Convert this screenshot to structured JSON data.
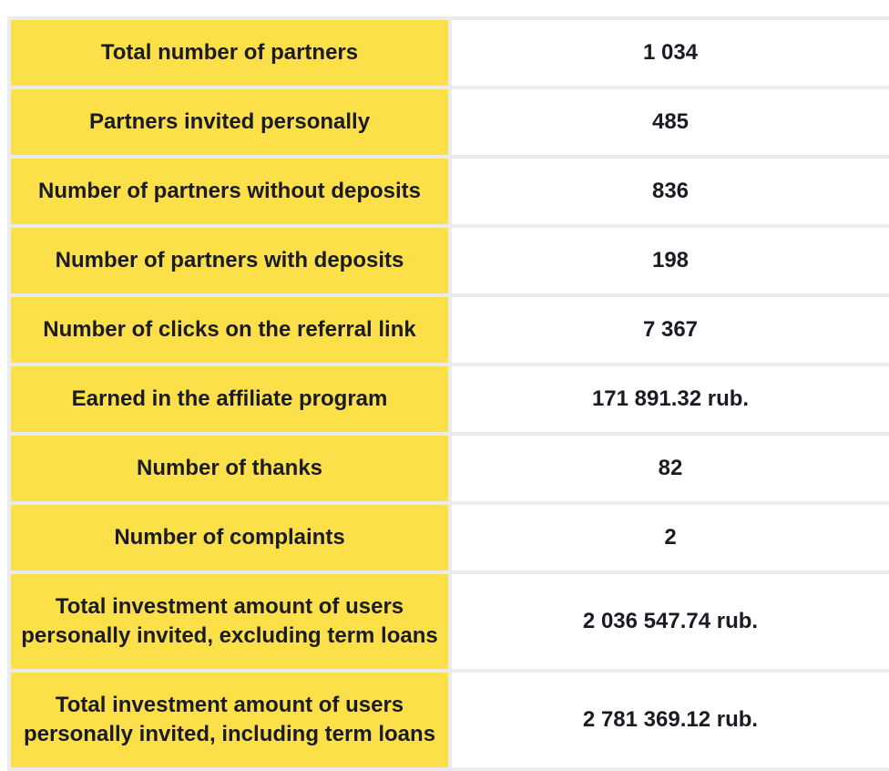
{
  "rows": [
    {
      "label": "Total number of partners",
      "value": "1 034"
    },
    {
      "label": "Partners invited personally",
      "value": "485"
    },
    {
      "label": "Number of partners without deposits",
      "value": "836"
    },
    {
      "label": "Number of partners with deposits",
      "value": "198"
    },
    {
      "label": "Number of clicks on the referral link",
      "value": "7 367"
    },
    {
      "label": "Earned in the affiliate program",
      "value": "171 891.32 rub."
    },
    {
      "label": "Number of thanks",
      "value": "82"
    },
    {
      "label": "Number of complaints",
      "value": "2"
    },
    {
      "label": "Total investment amount of users personally invited, excluding term loans",
      "value": "2 036 547.74 rub."
    },
    {
      "label": "Total investment amount of users personally invited, including term loans",
      "value": "2 781 369.12 rub."
    }
  ],
  "colors": {
    "label_background": "#fce04a",
    "value_background": "#ffffff",
    "border": "#ebebeb",
    "text": "#1b1b24"
  }
}
